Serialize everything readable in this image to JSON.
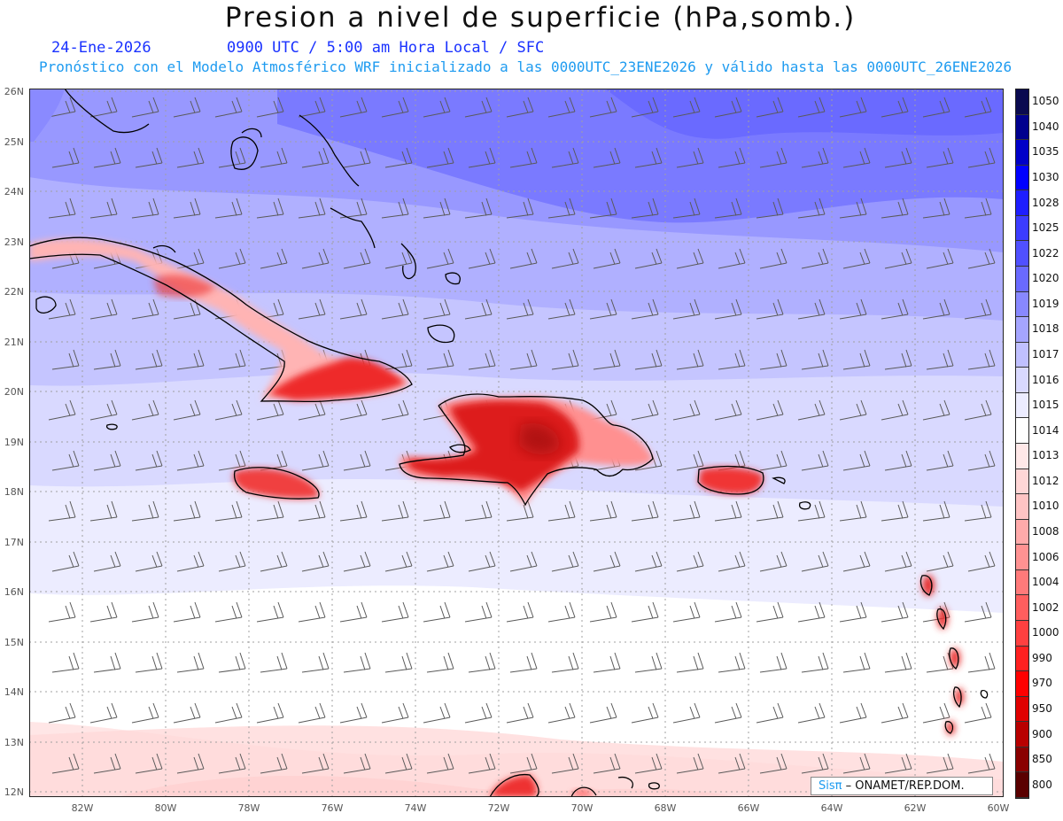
{
  "header": {
    "title": "Presion a nivel de superficie (hPa,somb.)",
    "date": "24-Ene-2026",
    "valid_time": "0900 UTC / 5:00 am Hora Local / SFC",
    "model_line": "Pronóstico con el Modelo Atmosférico WRF inicializado a las 0000UTC_23ENE2026 y válido hasta las  0000UTC_26ENE2026"
  },
  "axes": {
    "lat_labels": [
      "26N",
      "25N",
      "24N",
      "23N",
      "22N",
      "21N",
      "20N",
      "19N",
      "18N",
      "17N",
      "16N",
      "15N",
      "14N",
      "13N",
      "12N"
    ],
    "lon_labels": [
      "82W",
      "80W",
      "78W",
      "76W",
      "74W",
      "72W",
      "70W",
      "68W",
      "66W",
      "64W",
      "62W",
      "60W"
    ]
  },
  "map_extent": {
    "lon_min": -83.3,
    "lon_max": -59.9,
    "lat_min": 11.8,
    "lat_max": 26.1
  },
  "colorbar": {
    "labels": [
      "1050",
      "1040",
      "1035",
      "1030",
      "1028",
      "1025",
      "1022",
      "1020",
      "1019",
      "1018",
      "1017",
      "1016",
      "1015",
      "1014",
      "1013",
      "1012",
      "1010",
      "1008",
      "1006",
      "1004",
      "1002",
      "1000",
      "990",
      "970",
      "950",
      "900",
      "850",
      "800"
    ],
    "colors": [
      "#0a0a50",
      "#00008e",
      "#0000c8",
      "#0000ff",
      "#1e1eff",
      "#3c3cff",
      "#5050ff",
      "#6a6aff",
      "#8888ff",
      "#a5a5ff",
      "#c0c0ff",
      "#d9d9ff",
      "#ececff",
      "#ffffff",
      "#ffe8e8",
      "#ffd6d6",
      "#ffc4c4",
      "#ffaaaa",
      "#ff9292",
      "#ff7a7a",
      "#ff5e5e",
      "#ff4040",
      "#ff2020",
      "#ff0000",
      "#e00000",
      "#b80000",
      "#8a0000",
      "#5a0000"
    ]
  },
  "credit": {
    "logo": "Sisπ",
    "text": "– ONAMET/REP.DOM."
  }
}
